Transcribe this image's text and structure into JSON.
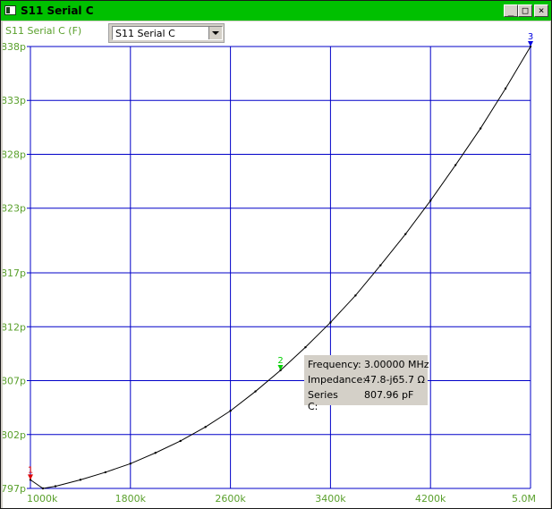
{
  "window": {
    "title": "S11 Serial C",
    "minimize_glyph": "_",
    "maximize_glyph": "□",
    "close_glyph": "×"
  },
  "chart_title": "S11 Serial C (F)",
  "selector": {
    "value": "S11 Serial C"
  },
  "colors": {
    "grid": "#0000c8",
    "axis_label": "#5aa02c",
    "curve": "#000000",
    "title_bar": "#00c000"
  },
  "chart_data": {
    "type": "line",
    "x_unit": "Hz",
    "y_unit": "F",
    "xlim": [
      1000000,
      5000000
    ],
    "ylim": [
      7.97e-10,
      8.38e-10
    ],
    "x_ticks": [
      1000000,
      1800000,
      2600000,
      3400000,
      4200000,
      5000000
    ],
    "x_tick_labels": [
      "1000k",
      "1800k",
      "2600k",
      "3400k",
      "4200k",
      "5.0M"
    ],
    "y_ticks": [
      7.97e-10,
      8.02e-10,
      8.07e-10,
      8.12e-10,
      8.17e-10,
      8.23e-10,
      8.28e-10,
      8.33e-10,
      8.38e-10
    ],
    "y_tick_labels": [
      "797p",
      "802p",
      "807p",
      "812p",
      "817p",
      "823p",
      "828p",
      "833p",
      "838p"
    ],
    "grid": true,
    "series": [
      {
        "x": [
          1000000,
          1100000,
          1200000,
          1400000,
          1600000,
          1800000,
          2000000,
          2200000,
          2400000,
          2600000,
          2800000,
          3000000,
          3200000,
          3400000,
          3600000,
          3800000,
          4000000,
          4200000,
          4400000,
          4600000,
          4800000,
          5000000
        ],
        "y": [
          7.978e-10,
          7.97e-10,
          7.972e-10,
          7.978e-10,
          7.985e-10,
          7.993e-10,
          8.003e-10,
          8.014e-10,
          8.027e-10,
          8.042e-10,
          8.06e-10,
          8.0796e-10,
          8.101e-10,
          8.124e-10,
          8.149e-10,
          8.177e-10,
          8.206e-10,
          8.237e-10,
          8.27e-10,
          8.304e-10,
          8.341e-10,
          8.38e-10
        ]
      }
    ],
    "markers": [
      {
        "label": "1",
        "x": 1000000,
        "y": 7.978e-10,
        "color": "#e00000"
      },
      {
        "label": "2",
        "x": 3000000,
        "y": 8.0796e-10,
        "color": "#00d000"
      },
      {
        "label": "3",
        "x": 5000000,
        "y": 8.38e-10,
        "color": "#0000e0"
      }
    ]
  },
  "info_box": {
    "frequency_label": "Frequency:",
    "frequency_value": "3.00000 MHz",
    "impedance_label": "Impedance:",
    "impedance_value": "47.8-j65.7 Ω",
    "seriesc_label": "Series C:",
    "seriesc_value": "807.96 pF"
  }
}
